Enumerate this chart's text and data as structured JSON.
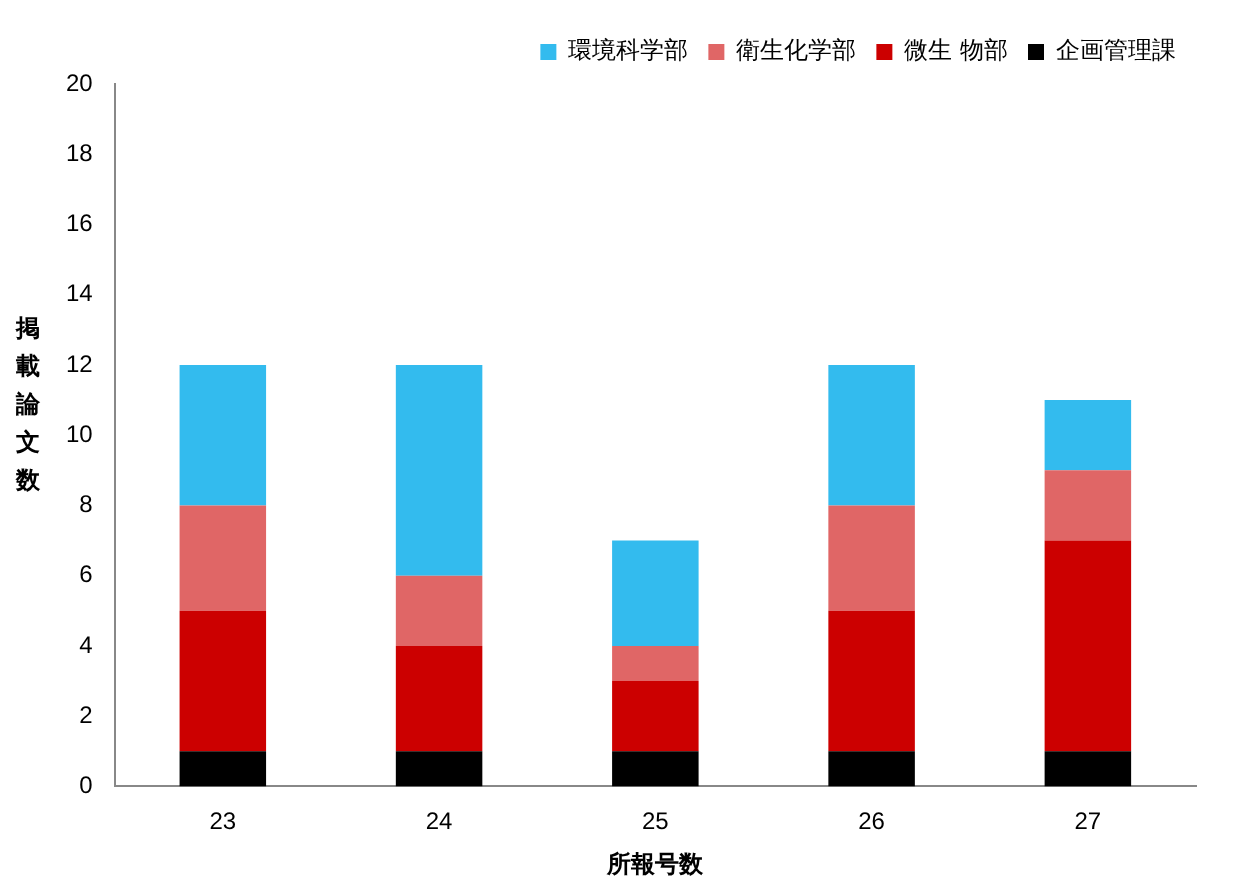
{
  "chart_data": {
    "type": "bar",
    "stacked": true,
    "categories": [
      "23",
      "24",
      "25",
      "26",
      "27"
    ],
    "series": [
      {
        "name": "企画管理課",
        "color": "#000000",
        "values": [
          1,
          1,
          1,
          1,
          1
        ]
      },
      {
        "name": "微生 物部",
        "color": "#cc0000",
        "values": [
          4,
          3,
          2,
          4,
          6
        ]
      },
      {
        "name": "衛生化学部",
        "color": "#e06666",
        "values": [
          3,
          2,
          1,
          3,
          2
        ]
      },
      {
        "name": "環境科学部",
        "color": "#33bbee",
        "values": [
          4,
          6,
          3,
          4,
          2
        ]
      }
    ],
    "xlabel": "所報号数",
    "ylabel": "掲載論文数",
    "ylim": [
      0,
      20
    ],
    "yticks": [
      0,
      2,
      4,
      6,
      8,
      10,
      12,
      14,
      16,
      18,
      20
    ],
    "grid": false,
    "legend": "top right"
  }
}
